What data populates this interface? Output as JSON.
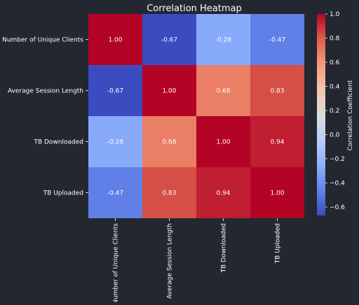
{
  "chart_data": {
    "type": "heatmap",
    "title": "Correlation Heatmap",
    "row_labels": [
      "Number of Unique Clients",
      "Average Session Length",
      "TB Downloaded",
      "TB Uploaded"
    ],
    "col_labels": [
      "Number of Unique Clients",
      "Average Session Length",
      "TB Downloaded",
      "TB Uploaded"
    ],
    "matrix": [
      [
        1.0,
        -0.67,
        -0.28,
        -0.47
      ],
      [
        -0.67,
        1.0,
        0.68,
        0.83
      ],
      [
        -0.28,
        0.68,
        1.0,
        0.94
      ],
      [
        -0.47,
        0.83,
        0.94,
        1.0
      ]
    ],
    "annotations": [
      [
        "1.00",
        "-0.67",
        "-0.28",
        "-0.47"
      ],
      [
        "-0.67",
        "1.00",
        "0.68",
        "0.83"
      ],
      [
        "-0.28",
        "0.68",
        "1.00",
        "0.94"
      ],
      [
        "-0.47",
        "0.83",
        "0.94",
        "1.00"
      ]
    ],
    "colormap": "coolwarm",
    "vmin": -0.67,
    "vmax": 1.0,
    "colorbar": {
      "label": "Correlation Coefficient",
      "ticks": [
        1.0,
        0.8,
        0.6,
        0.4,
        0.2,
        0.0,
        -0.2,
        -0.4,
        -0.6
      ],
      "tick_labels": [
        "1.0",
        "0.8",
        "0.6",
        "0.4",
        "0.2",
        "0.0",
        "−0.2",
        "−0.4",
        "−0.6"
      ]
    },
    "colors": {
      "background": "#232730",
      "text": "#ffffff",
      "cell_text": "#ffffff"
    }
  }
}
